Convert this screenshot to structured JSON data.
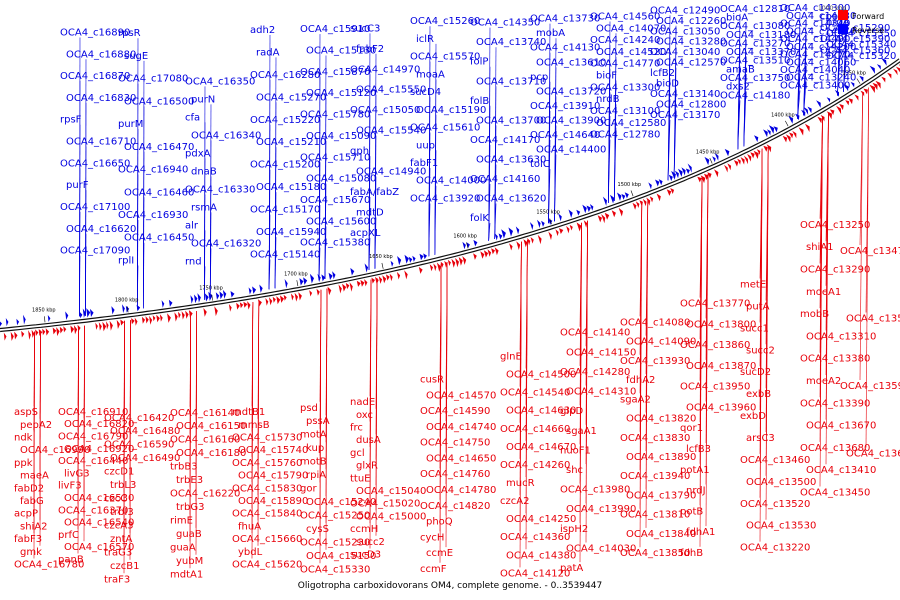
{
  "caption": "Oligotropha carboxidovorans OM4, complete genome. - 0..3539447",
  "scale_label": "1000 kbp",
  "legend": [
    {
      "label": "Forward",
      "color": "#ff0000"
    },
    {
      "label": "Reverse",
      "color": "#0000ff"
    }
  ],
  "colors": {
    "forward": "#e8000a",
    "reverse": "#0000e0",
    "backbone": "#111111"
  },
  "kbp_markers": [
    "1850 kbp",
    "1800 kbp",
    "1750 kbp",
    "1700 kbp",
    "1650 kbp",
    "1600 kbp",
    "1550 kbp",
    "1500 kbp",
    "1450 kbp",
    "1400 kbp",
    "1350 kbp"
  ],
  "reverse_labels": [
    "OCA4_c16890",
    "OCA4_c16880",
    "OCA4_c16870",
    "OCA4_c16830",
    "rpsF",
    "OCA4_c16710",
    "OCA4_c16650",
    "purF",
    "OCA4_c17100",
    "OCA4_c16620",
    "OCA4_c17090",
    "rpsR",
    "sugE",
    "OCA4_c17080",
    "OCA4_c16500",
    "purM",
    "OCA4_c16470",
    "OCA4_c16940",
    "OCA4_c16460",
    "OCA4_c16930",
    "OCA4_c16450",
    "rplI",
    "OCA4_c16350",
    "purN",
    "cfa",
    "OCA4_c16340",
    "pdxA",
    "dnaB",
    "OCA4_c16330",
    "rsmA",
    "alr",
    "OCA4_c16320",
    "rnd",
    "adh2",
    "radA",
    "OCA4_c16280",
    "OCA4_c15270",
    "OCA4_c15220",
    "OCA4_c15210",
    "OCA4_c15200",
    "OCA4_c15180",
    "OCA4_c15170",
    "OCA4_c15940",
    "OCA4_c15140",
    "OCA4_c15910",
    "OCA4_c15130",
    "OCA4_c15870",
    "OCA4_c15120",
    "OCA4_c15780",
    "OCA4_c15090",
    "OCA4_c15710",
    "OCA4_c15080",
    "OCA4_c15670",
    "OCA4_c15600",
    "OCA4_c15380",
    "sucC3",
    "fabF2",
    "OCA4_c14970",
    "OCA4_c15550",
    "OCA4_c15050",
    "OCA4_c15540",
    "gph",
    "OCA4_c14940",
    "fabA/fabZ",
    "mdtD",
    "acpXL",
    "OCA4_c15260",
    "iclR",
    "OCA4_c15570",
    "moaA",
    "sucD4",
    "OCA4_c15190",
    "OCA4_c15610",
    "uup",
    "fabF1",
    "OCA4_c14000",
    "OCA4_c13920",
    "OCA4_c14350",
    "OCA4_c13740",
    "folP",
    "OCA4_c13710",
    "folB",
    "OCA4_c13700",
    "OCA4_c14170",
    "OCA4_c13630",
    "OCA4_c14160",
    "OCA4_c13620",
    "folK",
    "OCA4_c13730",
    "mobA",
    "OCA4_c14130",
    "OCA4_c13610",
    "pcp",
    "OCA4_c13720",
    "OCA4_c13910",
    "OCA4_c13900",
    "OCA4_c14640",
    "OCA4_c14400",
    "tolC",
    "OCA4_c14560",
    "OCA4_c14070",
    "OCA4_c14240",
    "OCA4_c14520",
    "OCA4_c14770",
    "bioF",
    "OCA4_c13300",
    "nrdB",
    "OCA4_c13100",
    "OCA4_c12580",
    "OCA4_c12780",
    "OCA4_c12490",
    "OCA4_c12260",
    "OCA4_c13050",
    "OCA4_c13280",
    "OCA4_c13040",
    "OCA4_c12570",
    "lcfB2",
    "bioD",
    "OCA4_c13140",
    "OCA4_c12800",
    "OCA4_c13170",
    "OCA4_c12810",
    "bioA",
    "OCA4_c13080",
    "OCA4_c13180",
    "OCA4_c13270",
    "OCA4_c13370",
    "OCA4_c13510",
    "amaB",
    "OCA4_c13750",
    "dxs2",
    "OCA4_c14180",
    "OCA4_c14300",
    "OCA4_c14330",
    "OCA4_c14340",
    "OCA4_c14470",
    "OCA4_c14490",
    "OCA4_c14200",
    "OCA4_c14270",
    "OCA4_c14060",
    "OCA4_c14040",
    "OCA4_c13240",
    "OCA4_c13400",
    "cpoO",
    "nrdA",
    "OCA4_c15290",
    "OCA4_c15350",
    "OCA4_c15390",
    "OCA4_c15340",
    "OCA4_c15360",
    "OCA4_c15320"
  ],
  "forward_labels": [
    "aspS",
    "pepA2",
    "ndk",
    "OCA4_c16990",
    "ppk",
    "maeA",
    "fabD2",
    "fabG",
    "acpP",
    "shiA2",
    "fabF3",
    "gmk",
    "OCA4_c16780",
    "OCA4_c16910",
    "OCA4_c16820",
    "OCA4_c16790",
    "OCA4_c16920",
    "OCA4_c16440",
    "livG3",
    "livF3",
    "OCA4_c16530",
    "OCA4_c16370",
    "OCA4_c16540",
    "prfC",
    "OCA4_c16570",
    "panB",
    "OCA4_c16420",
    "OCA4_c16480",
    "OCA4_c16590",
    "OCA4_c16490",
    "czcD1",
    "trbL3",
    "czcC",
    "trbI3",
    "czcA3",
    "zntA",
    "traG3",
    "czcB1",
    "traF3",
    "OCA4_c16140",
    "OCA4_c16150",
    "OCA4_c16160",
    "OCA4_c16180",
    "trbB3",
    "trbE3",
    "OCA4_c16220",
    "trbG3",
    "rimE",
    "guaB",
    "guaA",
    "yubM",
    "mdtA1",
    "mdtB1",
    "mmsB",
    "OCA4_c15730",
    "OCA4_c15740",
    "OCA4_c15760",
    "OCA4_c15790",
    "OCA4_c15830",
    "OCA4_c15890",
    "OCA4_c15840",
    "fhuA",
    "OCA4_c15660",
    "ybdL",
    "OCA4_c15620",
    "psd",
    "pssA",
    "motA",
    "kup",
    "motB",
    "rpiA",
    "gor",
    "OCA4_c15240",
    "OCA4_c15250",
    "cysS",
    "OCA4_c15230",
    "OCA4_c15150",
    "OCA4_c15330",
    "nadE",
    "oxc",
    "frc",
    "dusA",
    "gcl",
    "glxR",
    "ttuE",
    "OCA4_c15040",
    "OCA4_c15020",
    "OCA4_c15000",
    "ccmH",
    "succ2",
    "sucD3",
    "cusR",
    "OCA4_c14570",
    "OCA4_c14590",
    "OCA4_c14740",
    "OCA4_c14750",
    "OCA4_c14650",
    "OCA4_c14760",
    "OCA4_c14780",
    "OCA4_c14820",
    "phoQ",
    "cycH",
    "ccmE",
    "ccmF",
    "glnE",
    "OCA4_c14500",
    "OCA4_c14540",
    "OCA4_c14630",
    "OCA4_c14660",
    "OCA4_c14670",
    "OCA4_c14260",
    "mucR",
    "czcA2",
    "OCA4_c14250",
    "OCA4_c14360",
    "OCA4_c14380",
    "OCA4_c14120",
    "OCA4_c14140",
    "OCA4_c14150",
    "OCA4_c14280",
    "OCA4_c14310",
    "glpD",
    "sgaA1",
    "nuoF1",
    "shc",
    "OCA4_c13980",
    "OCA4_c13990",
    "ispH2",
    "OCA4_c14030",
    "patA",
    "OCA4_c14080",
    "OCA4_c14090",
    "OCA4_c13930",
    "fdhA2",
    "sgaA2",
    "OCA4_c13820",
    "OCA4_c13830",
    "OCA4_c13890",
    "OCA4_c13940",
    "OCA4_c13790",
    "OCA4_c13810",
    "OCA4_c13840",
    "OCA4_c13850",
    "OCA4_c13770",
    "OCA4_c13800",
    "OCA4_c13860",
    "OCA4_c13870",
    "OCA4_c13950",
    "OCA4_c13960",
    "qor1",
    "lcfB3",
    "potA1",
    "nrdJ",
    "potB",
    "fdhA1",
    "fdhB",
    "metE",
    "putA",
    "succ1",
    "succ2",
    "sucD2",
    "exbB",
    "exbD",
    "arsC3",
    "OCA4_c13460",
    "OCA4_c13500",
    "OCA4_c13520",
    "OCA4_c13530",
    "OCA4_c13220",
    "OCA4_c13250",
    "shiA1",
    "OCA4_c13290",
    "moeA1",
    "mobB",
    "OCA4_c13310",
    "OCA4_c13380",
    "moeA2",
    "OCA4_c13390",
    "OCA4_c13670",
    "OCA4_c13680",
    "OCA4_c13410",
    "OCA4_c13450",
    "OCA4_c13470",
    "OCA4_c13580",
    "OCA4_c13590",
    "OCA4_c13600"
  ]
}
